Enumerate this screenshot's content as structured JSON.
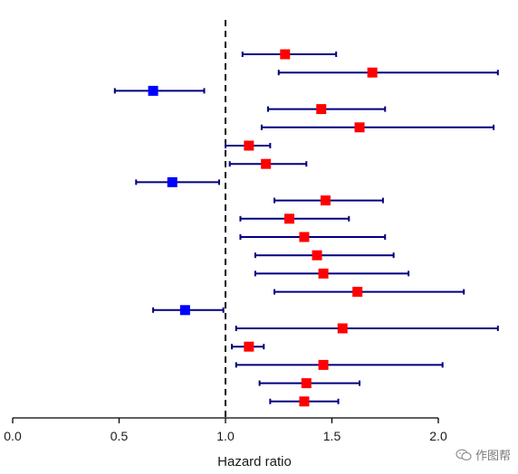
{
  "chart_data": {
    "type": "forest",
    "xlabel": "Hazard ratio",
    "xlim": [
      0.0,
      2.0
    ],
    "xticks": [
      0.0,
      0.5,
      1.0,
      1.5,
      2.0
    ],
    "xtick_labels": [
      "0.0",
      "0.5",
      "1.0",
      "1.5",
      "2.0"
    ],
    "reference_line": 1.0,
    "colors": {
      "increased_risk": "#ff0000",
      "decreased_risk": "#0000ff",
      "interval": "#00007f",
      "reference": "#000000"
    },
    "rows": [
      {
        "hr": 1.28,
        "lower": 1.08,
        "upper": 1.52,
        "color": "#ff0000"
      },
      {
        "hr": 1.69,
        "lower": 1.25,
        "upper": 2.28,
        "color": "#ff0000"
      },
      {
        "hr": 0.66,
        "lower": 0.48,
        "upper": 0.9,
        "color": "#0000ff"
      },
      {
        "hr": 1.45,
        "lower": 1.2,
        "upper": 1.75,
        "color": "#ff0000"
      },
      {
        "hr": 1.63,
        "lower": 1.17,
        "upper": 2.26,
        "color": "#ff0000"
      },
      {
        "hr": 1.11,
        "lower": 1.0,
        "upper": 1.21,
        "color": "#ff0000"
      },
      {
        "hr": 1.19,
        "lower": 1.02,
        "upper": 1.38,
        "color": "#ff0000"
      },
      {
        "hr": 0.75,
        "lower": 0.58,
        "upper": 0.97,
        "color": "#0000ff"
      },
      {
        "hr": 1.47,
        "lower": 1.23,
        "upper": 1.74,
        "color": "#ff0000"
      },
      {
        "hr": 1.3,
        "lower": 1.07,
        "upper": 1.58,
        "color": "#ff0000"
      },
      {
        "hr": 1.37,
        "lower": 1.07,
        "upper": 1.75,
        "color": "#ff0000"
      },
      {
        "hr": 1.43,
        "lower": 1.14,
        "upper": 1.79,
        "color": "#ff0000"
      },
      {
        "hr": 1.46,
        "lower": 1.14,
        "upper": 1.86,
        "color": "#ff0000"
      },
      {
        "hr": 1.62,
        "lower": 1.23,
        "upper": 2.12,
        "color": "#ff0000"
      },
      {
        "hr": 0.81,
        "lower": 0.66,
        "upper": 0.99,
        "color": "#0000ff"
      },
      {
        "hr": 1.55,
        "lower": 1.05,
        "upper": 2.28,
        "color": "#ff0000"
      },
      {
        "hr": 1.11,
        "lower": 1.03,
        "upper": 1.18,
        "color": "#ff0000"
      },
      {
        "hr": 1.46,
        "lower": 1.05,
        "upper": 2.02,
        "color": "#ff0000"
      },
      {
        "hr": 1.38,
        "lower": 1.16,
        "upper": 1.63,
        "color": "#ff0000"
      },
      {
        "hr": 1.37,
        "lower": 1.21,
        "upper": 1.53,
        "color": "#ff0000"
      }
    ]
  },
  "watermark": {
    "text": "作图帮",
    "icon": "wechat-icon"
  }
}
